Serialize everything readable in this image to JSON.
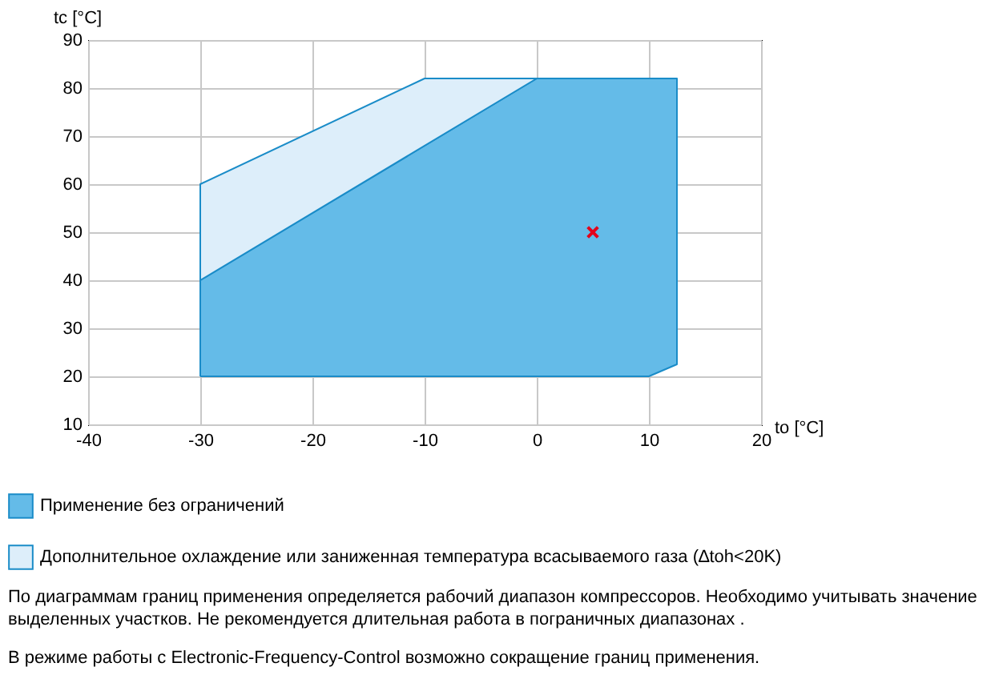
{
  "chart_data": {
    "type": "area",
    "xlabel": "to [°C]",
    "ylabel": "tc [°C]",
    "xlim": [
      -40,
      20
    ],
    "ylim": [
      10,
      90
    ],
    "xticks": [
      -40,
      -30,
      -20,
      -10,
      0,
      10,
      20
    ],
    "yticks": [
      10,
      20,
      30,
      40,
      50,
      60,
      70,
      80,
      90
    ],
    "grid": true,
    "legend": "bottom",
    "series": [
      {
        "name": "Применение без ограничений",
        "color": "#64bbe8",
        "x": [
          -30,
          -30,
          0,
          12.5,
          12.5,
          10,
          -30
        ],
        "values": [
          20,
          40,
          82,
          82,
          22.5,
          20,
          20
        ]
      },
      {
        "name": "Дополнительное охлаждение или заниженная температура всасываемого газа (∆toh<20K)",
        "color": "#ddeefa",
        "x": [
          -30,
          -30,
          -10,
          0,
          -30
        ],
        "values": [
          40,
          60,
          82,
          82,
          40
        ]
      },
      {
        "type": "scatter",
        "marker": "cross",
        "color": "#e3001b",
        "x": [
          5
        ],
        "values": [
          50
        ]
      }
    ],
    "annotations": [
      "По диаграммам границ применения определяется рабочий диапазон компрессоров. Необходимо учитывать значение выделенных участков. Не рекомендуется длительная работа в пограничных диапазонах .",
      "В режиме работы с Electronic-Frequency-Control возможно сокращение границ применения."
    ]
  }
}
